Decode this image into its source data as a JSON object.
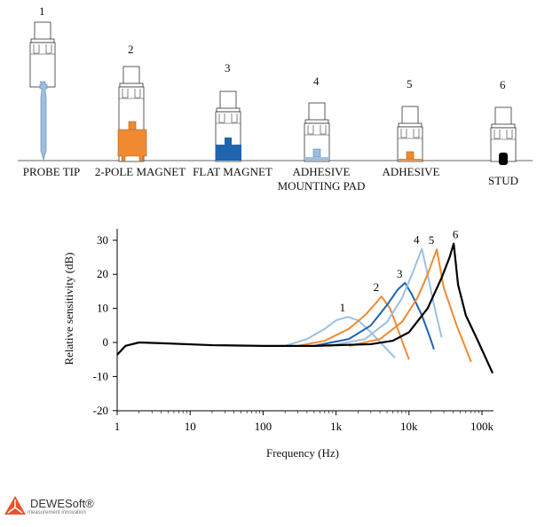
{
  "mounts": [
    {
      "num": "1",
      "label": "PROBE TIP"
    },
    {
      "num": "2",
      "label": "2-POLE MAGNET"
    },
    {
      "num": "3",
      "label": "FLAT MAGNET"
    },
    {
      "num": "4",
      "label": "ADHESIVE MOUNTING PAD"
    },
    {
      "num": "5",
      "label": "ADHESIVE"
    },
    {
      "num": "6",
      "label": "STUD"
    }
  ],
  "colors": {
    "light_blue": "#9dbfe0",
    "orange": "#f08a30",
    "dark_blue": "#1f64ad",
    "black": "#000000"
  },
  "logo": {
    "name": "DEWESoft®",
    "tagline": "measurement innovation",
    "color": "#e8542b"
  },
  "chart_data": {
    "type": "line",
    "xlabel": "Frequency (Hz)",
    "ylabel": "Relative sensitivity (dB)",
    "xscale": "log",
    "xlim": [
      1,
      100000
    ],
    "ylim": [
      -20,
      30
    ],
    "xticks": [
      {
        "v": 1,
        "l": "1"
      },
      {
        "v": 10,
        "l": "10"
      },
      {
        "v": 100,
        "l": "100"
      },
      {
        "v": 1000,
        "l": "1k"
      },
      {
        "v": 10000,
        "l": "10k"
      },
      {
        "v": 100000,
        "l": "100k"
      }
    ],
    "yticks": [
      30,
      20,
      10,
      0,
      -10,
      -20
    ],
    "series": [
      {
        "name": "1",
        "color": "#9dbfe0",
        "points": [
          [
            200,
            -1
          ],
          [
            400,
            1
          ],
          [
            700,
            4
          ],
          [
            1000,
            6.5
          ],
          [
            1450,
            7.5
          ],
          [
            2000,
            6.5
          ],
          [
            3000,
            3
          ],
          [
            4500,
            -1
          ],
          [
            6400,
            -4.5
          ]
        ]
      },
      {
        "name": "2",
        "color": "#f08a30",
        "points": [
          [
            300,
            -1
          ],
          [
            700,
            0.5
          ],
          [
            1500,
            4
          ],
          [
            2500,
            8
          ],
          [
            3500,
            11.5
          ],
          [
            4200,
            13.5
          ],
          [
            5500,
            10
          ],
          [
            7000,
            4
          ],
          [
            8500,
            -1
          ],
          [
            10000,
            -5
          ]
        ]
      },
      {
        "name": "3",
        "color": "#1f64ad",
        "points": [
          [
            500,
            -1
          ],
          [
            1500,
            1
          ],
          [
            3000,
            5
          ],
          [
            5000,
            11
          ],
          [
            7000,
            15.5
          ],
          [
            8800,
            17.5
          ],
          [
            11000,
            14
          ],
          [
            15000,
            8
          ],
          [
            19000,
            2
          ],
          [
            22000,
            -2
          ]
        ]
      },
      {
        "name": "4",
        "color": "#9dbfe0",
        "points": [
          [
            800,
            -1
          ],
          [
            2500,
            1
          ],
          [
            5000,
            6
          ],
          [
            8000,
            13
          ],
          [
            11000,
            20
          ],
          [
            15000,
            27.5
          ],
          [
            18000,
            20
          ],
          [
            22000,
            11
          ],
          [
            28000,
            1.5
          ]
        ]
      },
      {
        "name": "5",
        "color": "#f08a30",
        "points": [
          [
            1500,
            -1
          ],
          [
            4000,
            1
          ],
          [
            8000,
            6
          ],
          [
            13000,
            13
          ],
          [
            18000,
            20
          ],
          [
            24000,
            27.3
          ],
          [
            30000,
            16
          ],
          [
            45000,
            5
          ],
          [
            71000,
            -5.7
          ]
        ]
      },
      {
        "name": "6",
        "color": "#000000",
        "points": [
          [
            1,
            -3.6
          ],
          [
            1.3,
            -1
          ],
          [
            2,
            0
          ],
          [
            5,
            -0.3
          ],
          [
            20,
            -0.8
          ],
          [
            100,
            -1
          ],
          [
            500,
            -1
          ],
          [
            3000,
            -0.5
          ],
          [
            6000,
            0.5
          ],
          [
            10000,
            3
          ],
          [
            18000,
            10
          ],
          [
            28000,
            19
          ],
          [
            36000,
            25
          ],
          [
            41000,
            29
          ],
          [
            47000,
            17
          ],
          [
            60000,
            8
          ],
          [
            90000,
            0
          ],
          [
            140000,
            -9
          ]
        ]
      }
    ]
  }
}
